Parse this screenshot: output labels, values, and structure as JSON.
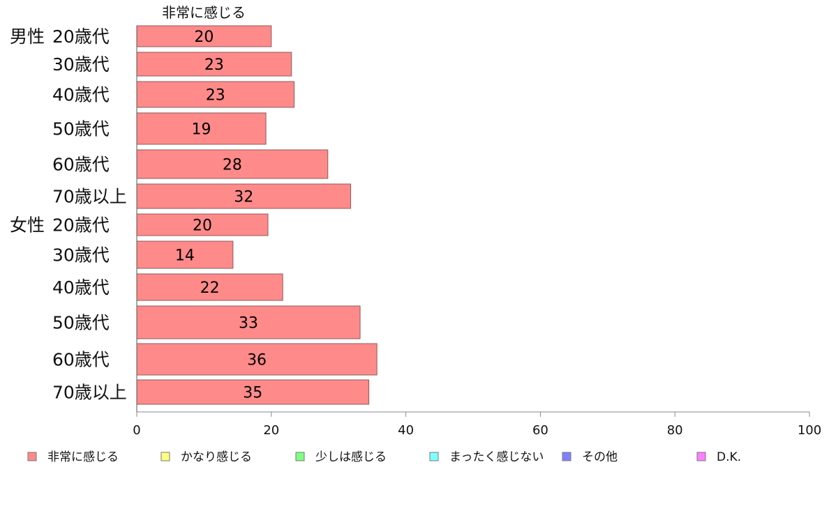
{
  "chart_data": {
    "type": "bar",
    "orientation": "horizontal",
    "stacked": true,
    "series_header": "非常に感じる",
    "groups": [
      {
        "label": "男性",
        "categories": [
          "20歳代",
          "30歳代",
          "40歳代",
          "50歳代",
          "60歳代",
          "70歳以上"
        ]
      },
      {
        "label": "女性",
        "categories": [
          "20歳代",
          "30歳代",
          "40歳代",
          "50歳代",
          "60歳代",
          "70歳以上"
        ]
      }
    ],
    "series": [
      {
        "name": "非常に感じる",
        "color": "#ff8a8a",
        "values": [
          20,
          23,
          23,
          19,
          28,
          32,
          20,
          14,
          22,
          33,
          36,
          35
        ],
        "bar_values": [
          20.0,
          23.0,
          23.4,
          19.2,
          28.4,
          31.8,
          19.5,
          14.3,
          21.7,
          33.2,
          35.7,
          34.5
        ]
      },
      {
        "name": "かなり感じる",
        "color": "#ffff80",
        "values": []
      },
      {
        "name": "少しは感じる",
        "color": "#80ff80",
        "values": []
      },
      {
        "name": "まったく感じない",
        "color": "#80ffff",
        "values": []
      },
      {
        "name": "その他",
        "color": "#8080ff",
        "values": []
      },
      {
        "name": "D.K.",
        "color": "#ff80ff",
        "values": []
      }
    ],
    "xlim": [
      0,
      100
    ],
    "xticks": [
      "0",
      "20",
      "40",
      "60",
      "80",
      "100"
    ],
    "grid": false,
    "legend": "bottom"
  }
}
